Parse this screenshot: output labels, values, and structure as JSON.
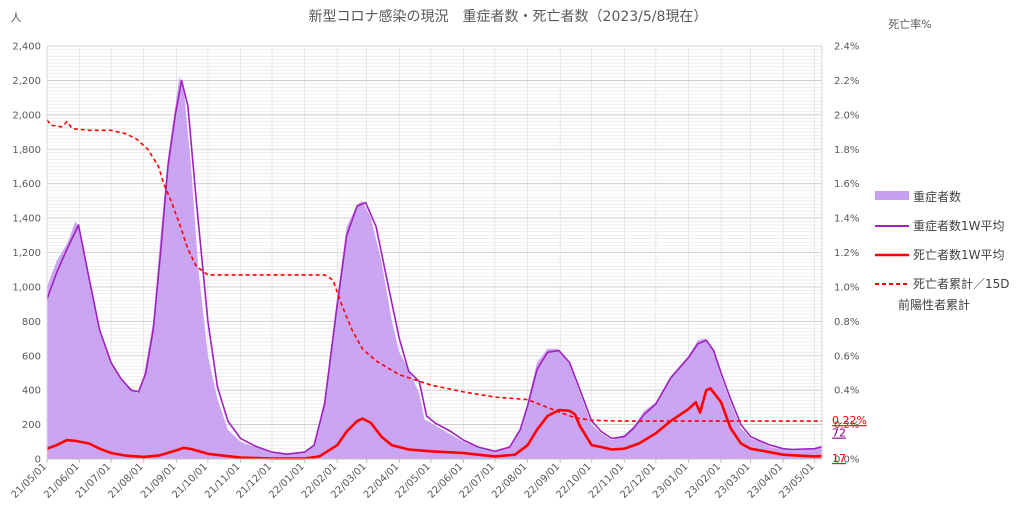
{
  "chart_data": {
    "type": "area",
    "title": "新型コロナ感染の現況　重症者数・死亡者数（2023/5/8現在）",
    "y_left_unit": "人",
    "y_right_unit": "死亡率%",
    "y_left_ticks": [
      "0",
      "200",
      "400",
      "600",
      "800",
      "1,000",
      "1,200",
      "1,400",
      "1,600",
      "1,800",
      "2,000",
      "2,200",
      "2,400"
    ],
    "y_right_ticks": [
      "0.0%",
      "0.2%",
      "0.4%",
      "0.6%",
      "0.8%",
      "1.0%",
      "1.2%",
      "1.4%",
      "1.6%",
      "1.8%",
      "2.0%",
      "2.2%",
      "2.4%"
    ],
    "x_ticks": [
      "21/05/01",
      "21/06/01",
      "21/07/01",
      "21/08/01",
      "21/09/01",
      "21/10/01",
      "21/11/01",
      "21/12/01",
      "22/01/01",
      "22/02/01",
      "22/03/01",
      "22/04/01",
      "22/05/01",
      "22/06/01",
      "22/07/01",
      "22/08/01",
      "22/09/01",
      "22/10/01",
      "22/11/01",
      "22/12/01",
      "23/01/01",
      "23/02/01",
      "23/03/01",
      "23/04/01",
      "23/05/01"
    ],
    "ylim_left": [
      0,
      2400
    ],
    "ylim_right": [
      0,
      2.4
    ],
    "x_range": [
      "2021-05-01",
      "2023-05-08"
    ],
    "legend_position": "right",
    "grid": true,
    "series": [
      {
        "name": "重症者数",
        "kind": "area",
        "axis": "left",
        "color": "#c8a0f0",
        "points": [
          [
            "2021-05-01",
            1000
          ],
          [
            "2021-05-10",
            1150
          ],
          [
            "2021-05-20",
            1250
          ],
          [
            "2021-05-28",
            1380
          ],
          [
            "2021-06-01",
            1350
          ],
          [
            "2021-06-10",
            1050
          ],
          [
            "2021-06-20",
            750
          ],
          [
            "2021-07-01",
            550
          ],
          [
            "2021-07-10",
            470
          ],
          [
            "2021-07-20",
            410
          ],
          [
            "2021-07-26",
            380
          ],
          [
            "2021-08-01",
            480
          ],
          [
            "2021-08-10",
            800
          ],
          [
            "2021-08-17",
            1300
          ],
          [
            "2021-08-24",
            1750
          ],
          [
            "2021-08-31",
            2050
          ],
          [
            "2021-09-04",
            2220
          ],
          [
            "2021-09-08",
            2150
          ],
          [
            "2021-09-15",
            1700
          ],
          [
            "2021-09-22",
            1100
          ],
          [
            "2021-10-01",
            600
          ],
          [
            "2021-10-10",
            350
          ],
          [
            "2021-10-20",
            170
          ],
          [
            "2021-11-01",
            100
          ],
          [
            "2021-11-15",
            70
          ],
          [
            "2021-12-01",
            35
          ],
          [
            "2021-12-15",
            25
          ],
          [
            "2022-01-01",
            40
          ],
          [
            "2022-01-10",
            80
          ],
          [
            "2022-01-20",
            350
          ],
          [
            "2022-01-31",
            900
          ],
          [
            "2022-02-10",
            1350
          ],
          [
            "2022-02-20",
            1480
          ],
          [
            "2022-02-25",
            1500
          ],
          [
            "2022-03-05",
            1400
          ],
          [
            "2022-03-15",
            1150
          ],
          [
            "2022-03-25",
            800
          ],
          [
            "2022-04-01",
            620
          ],
          [
            "2022-04-10",
            520
          ],
          [
            "2022-04-20",
            380
          ],
          [
            "2022-04-25",
            230
          ],
          [
            "2022-05-01",
            210
          ],
          [
            "2022-05-15",
            160
          ],
          [
            "2022-06-01",
            100
          ],
          [
            "2022-06-15",
            65
          ],
          [
            "2022-07-01",
            40
          ],
          [
            "2022-07-15",
            70
          ],
          [
            "2022-07-25",
            180
          ],
          [
            "2022-08-01",
            330
          ],
          [
            "2022-08-10",
            560
          ],
          [
            "2022-08-20",
            640
          ],
          [
            "2022-08-30",
            640
          ],
          [
            "2022-09-10",
            550
          ],
          [
            "2022-09-20",
            380
          ],
          [
            "2022-10-01",
            200
          ],
          [
            "2022-10-10",
            150
          ],
          [
            "2022-10-20",
            110
          ],
          [
            "2022-11-01",
            140
          ],
          [
            "2022-11-10",
            190
          ],
          [
            "2022-11-20",
            280
          ],
          [
            "2022-12-01",
            330
          ],
          [
            "2022-12-15",
            480
          ],
          [
            "2023-01-01",
            600
          ],
          [
            "2023-01-10",
            690
          ],
          [
            "2023-01-18",
            700
          ],
          [
            "2023-01-25",
            620
          ],
          [
            "2023-02-01",
            480
          ],
          [
            "2023-02-10",
            330
          ],
          [
            "2023-02-20",
            180
          ],
          [
            "2023-03-01",
            120
          ],
          [
            "2023-03-10",
            100
          ],
          [
            "2023-03-20",
            70
          ],
          [
            "2023-04-01",
            55
          ],
          [
            "2023-04-10",
            50
          ],
          [
            "2023-04-20",
            55
          ],
          [
            "2023-05-01",
            60
          ],
          [
            "2023-05-08",
            72
          ]
        ]
      },
      {
        "name": "重症者数1W平均",
        "kind": "line",
        "axis": "left",
        "color": "#a020c0",
        "points": [
          [
            "2021-05-01",
            930
          ],
          [
            "2021-05-10",
            1080
          ],
          [
            "2021-05-20",
            1220
          ],
          [
            "2021-05-31",
            1360
          ],
          [
            "2021-06-10",
            1050
          ],
          [
            "2021-06-20",
            750
          ],
          [
            "2021-07-01",
            560
          ],
          [
            "2021-07-10",
            470
          ],
          [
            "2021-07-20",
            400
          ],
          [
            "2021-07-27",
            390
          ],
          [
            "2021-08-03",
            500
          ],
          [
            "2021-08-10",
            750
          ],
          [
            "2021-08-17",
            1200
          ],
          [
            "2021-08-24",
            1700
          ],
          [
            "2021-08-31",
            2000
          ],
          [
            "2021-09-06",
            2200
          ],
          [
            "2021-09-12",
            2050
          ],
          [
            "2021-09-20",
            1500
          ],
          [
            "2021-10-01",
            800
          ],
          [
            "2021-10-10",
            420
          ],
          [
            "2021-10-20",
            220
          ],
          [
            "2021-11-01",
            120
          ],
          [
            "2021-11-15",
            75
          ],
          [
            "2021-12-01",
            40
          ],
          [
            "2021-12-15",
            28
          ],
          [
            "2022-01-01",
            40
          ],
          [
            "2022-01-10",
            80
          ],
          [
            "2022-01-20",
            320
          ],
          [
            "2022-01-31",
            850
          ],
          [
            "2022-02-10",
            1300
          ],
          [
            "2022-02-20",
            1470
          ],
          [
            "2022-02-28",
            1490
          ],
          [
            "2022-03-10",
            1350
          ],
          [
            "2022-03-20",
            1050
          ],
          [
            "2022-04-01",
            700
          ],
          [
            "2022-04-10",
            510
          ],
          [
            "2022-04-20",
            450
          ],
          [
            "2022-04-27",
            250
          ],
          [
            "2022-05-05",
            210
          ],
          [
            "2022-05-20",
            160
          ],
          [
            "2022-06-01",
            110
          ],
          [
            "2022-06-15",
            70
          ],
          [
            "2022-07-01",
            45
          ],
          [
            "2022-07-15",
            70
          ],
          [
            "2022-07-25",
            170
          ],
          [
            "2022-08-01",
            310
          ],
          [
            "2022-08-10",
            520
          ],
          [
            "2022-08-20",
            620
          ],
          [
            "2022-08-31",
            630
          ],
          [
            "2022-09-10",
            560
          ],
          [
            "2022-09-20",
            400
          ],
          [
            "2022-10-01",
            220
          ],
          [
            "2022-10-10",
            160
          ],
          [
            "2022-10-20",
            120
          ],
          [
            "2022-11-01",
            130
          ],
          [
            "2022-11-10",
            180
          ],
          [
            "2022-11-20",
            260
          ],
          [
            "2022-12-01",
            320
          ],
          [
            "2022-12-15",
            470
          ],
          [
            "2023-01-01",
            590
          ],
          [
            "2023-01-10",
            670
          ],
          [
            "2023-01-18",
            690
          ],
          [
            "2023-01-25",
            630
          ],
          [
            "2023-02-01",
            500
          ],
          [
            "2023-02-10",
            350
          ],
          [
            "2023-02-20",
            200
          ],
          [
            "2023-03-01",
            130
          ],
          [
            "2023-03-10",
            105
          ],
          [
            "2023-03-20",
            80
          ],
          [
            "2023-04-01",
            60
          ],
          [
            "2023-04-10",
            55
          ],
          [
            "2023-04-20",
            58
          ],
          [
            "2023-05-01",
            60
          ],
          [
            "2023-05-08",
            72
          ]
        ]
      },
      {
        "name": "死亡者数1W平均",
        "kind": "line",
        "axis": "left",
        "color": "#ff0000",
        "points": [
          [
            "2021-05-01",
            60
          ],
          [
            "2021-05-10",
            80
          ],
          [
            "2021-05-20",
            110
          ],
          [
            "2021-05-28",
            105
          ],
          [
            "2021-06-10",
            90
          ],
          [
            "2021-06-20",
            60
          ],
          [
            "2021-07-01",
            35
          ],
          [
            "2021-07-15",
            20
          ],
          [
            "2021-08-01",
            12
          ],
          [
            "2021-08-15",
            20
          ],
          [
            "2021-09-01",
            50
          ],
          [
            "2021-09-08",
            65
          ],
          [
            "2021-09-15",
            58
          ],
          [
            "2021-10-01",
            30
          ],
          [
            "2021-10-15",
            20
          ],
          [
            "2021-11-01",
            8
          ],
          [
            "2021-12-01",
            3
          ],
          [
            "2022-01-01",
            3
          ],
          [
            "2022-01-15",
            15
          ],
          [
            "2022-02-01",
            80
          ],
          [
            "2022-02-10",
            160
          ],
          [
            "2022-02-20",
            220
          ],
          [
            "2022-02-25",
            235
          ],
          [
            "2022-03-05",
            210
          ],
          [
            "2022-03-15",
            130
          ],
          [
            "2022-03-25",
            80
          ],
          [
            "2022-04-10",
            55
          ],
          [
            "2022-05-01",
            45
          ],
          [
            "2022-06-01",
            35
          ],
          [
            "2022-06-15",
            25
          ],
          [
            "2022-07-01",
            15
          ],
          [
            "2022-07-20",
            25
          ],
          [
            "2022-08-01",
            80
          ],
          [
            "2022-08-10",
            170
          ],
          [
            "2022-08-20",
            250
          ],
          [
            "2022-08-31",
            285
          ],
          [
            "2022-09-10",
            280
          ],
          [
            "2022-09-15",
            260
          ],
          [
            "2022-09-20",
            190
          ],
          [
            "2022-10-01",
            80
          ],
          [
            "2022-10-10",
            70
          ],
          [
            "2022-10-20",
            55
          ],
          [
            "2022-11-01",
            60
          ],
          [
            "2022-11-15",
            90
          ],
          [
            "2022-12-01",
            150
          ],
          [
            "2022-12-15",
            220
          ],
          [
            "2023-01-01",
            290
          ],
          [
            "2023-01-08",
            330
          ],
          [
            "2023-01-12",
            270
          ],
          [
            "2023-01-18",
            400
          ],
          [
            "2023-01-22",
            410
          ],
          [
            "2023-02-01",
            330
          ],
          [
            "2023-02-10",
            180
          ],
          [
            "2023-02-20",
            90
          ],
          [
            "2023-03-01",
            60
          ],
          [
            "2023-03-15",
            45
          ],
          [
            "2023-04-01",
            25
          ],
          [
            "2023-04-15",
            20
          ],
          [
            "2023-05-01",
            15
          ],
          [
            "2023-05-08",
            17
          ]
        ]
      },
      {
        "name": "死亡者累計／15D前陽性者累計",
        "kind": "dashed-line",
        "axis": "right",
        "color": "#ff0000",
        "points": [
          [
            "2021-05-01",
            1.97
          ],
          [
            "2021-05-05",
            1.94
          ],
          [
            "2021-05-15",
            1.93
          ],
          [
            "2021-05-20",
            1.96
          ],
          [
            "2021-05-25",
            1.92
          ],
          [
            "2021-06-10",
            1.91
          ],
          [
            "2021-07-01",
            1.91
          ],
          [
            "2021-07-15",
            1.89
          ],
          [
            "2021-07-25",
            1.86
          ],
          [
            "2021-08-05",
            1.8
          ],
          [
            "2021-08-15",
            1.7
          ],
          [
            "2021-08-20",
            1.6
          ],
          [
            "2021-08-27",
            1.5
          ],
          [
            "2021-09-05",
            1.35
          ],
          [
            "2021-09-12",
            1.22
          ],
          [
            "2021-09-20",
            1.12
          ],
          [
            "2021-10-01",
            1.07
          ],
          [
            "2021-10-15",
            1.07
          ],
          [
            "2022-01-20",
            1.07
          ],
          [
            "2022-01-28",
            1.04
          ],
          [
            "2022-02-05",
            0.9
          ],
          [
            "2022-02-15",
            0.75
          ],
          [
            "2022-02-25",
            0.64
          ],
          [
            "2022-03-10",
            0.57
          ],
          [
            "2022-04-01",
            0.49
          ],
          [
            "2022-05-01",
            0.43
          ],
          [
            "2022-06-01",
            0.39
          ],
          [
            "2022-07-01",
            0.36
          ],
          [
            "2022-08-01",
            0.345
          ],
          [
            "2022-08-20",
            0.3
          ],
          [
            "2022-09-01",
            0.27
          ],
          [
            "2022-09-15",
            0.24
          ],
          [
            "2022-10-01",
            0.225
          ],
          [
            "2022-11-01",
            0.22
          ],
          [
            "2023-05-08",
            0.22
          ]
        ]
      }
    ],
    "end_labels": [
      {
        "text": "0.22%",
        "color": "#ff0000"
      },
      {
        "text": "72",
        "color": "#800080"
      },
      {
        "text": "17",
        "color": "#ff0000"
      }
    ]
  }
}
